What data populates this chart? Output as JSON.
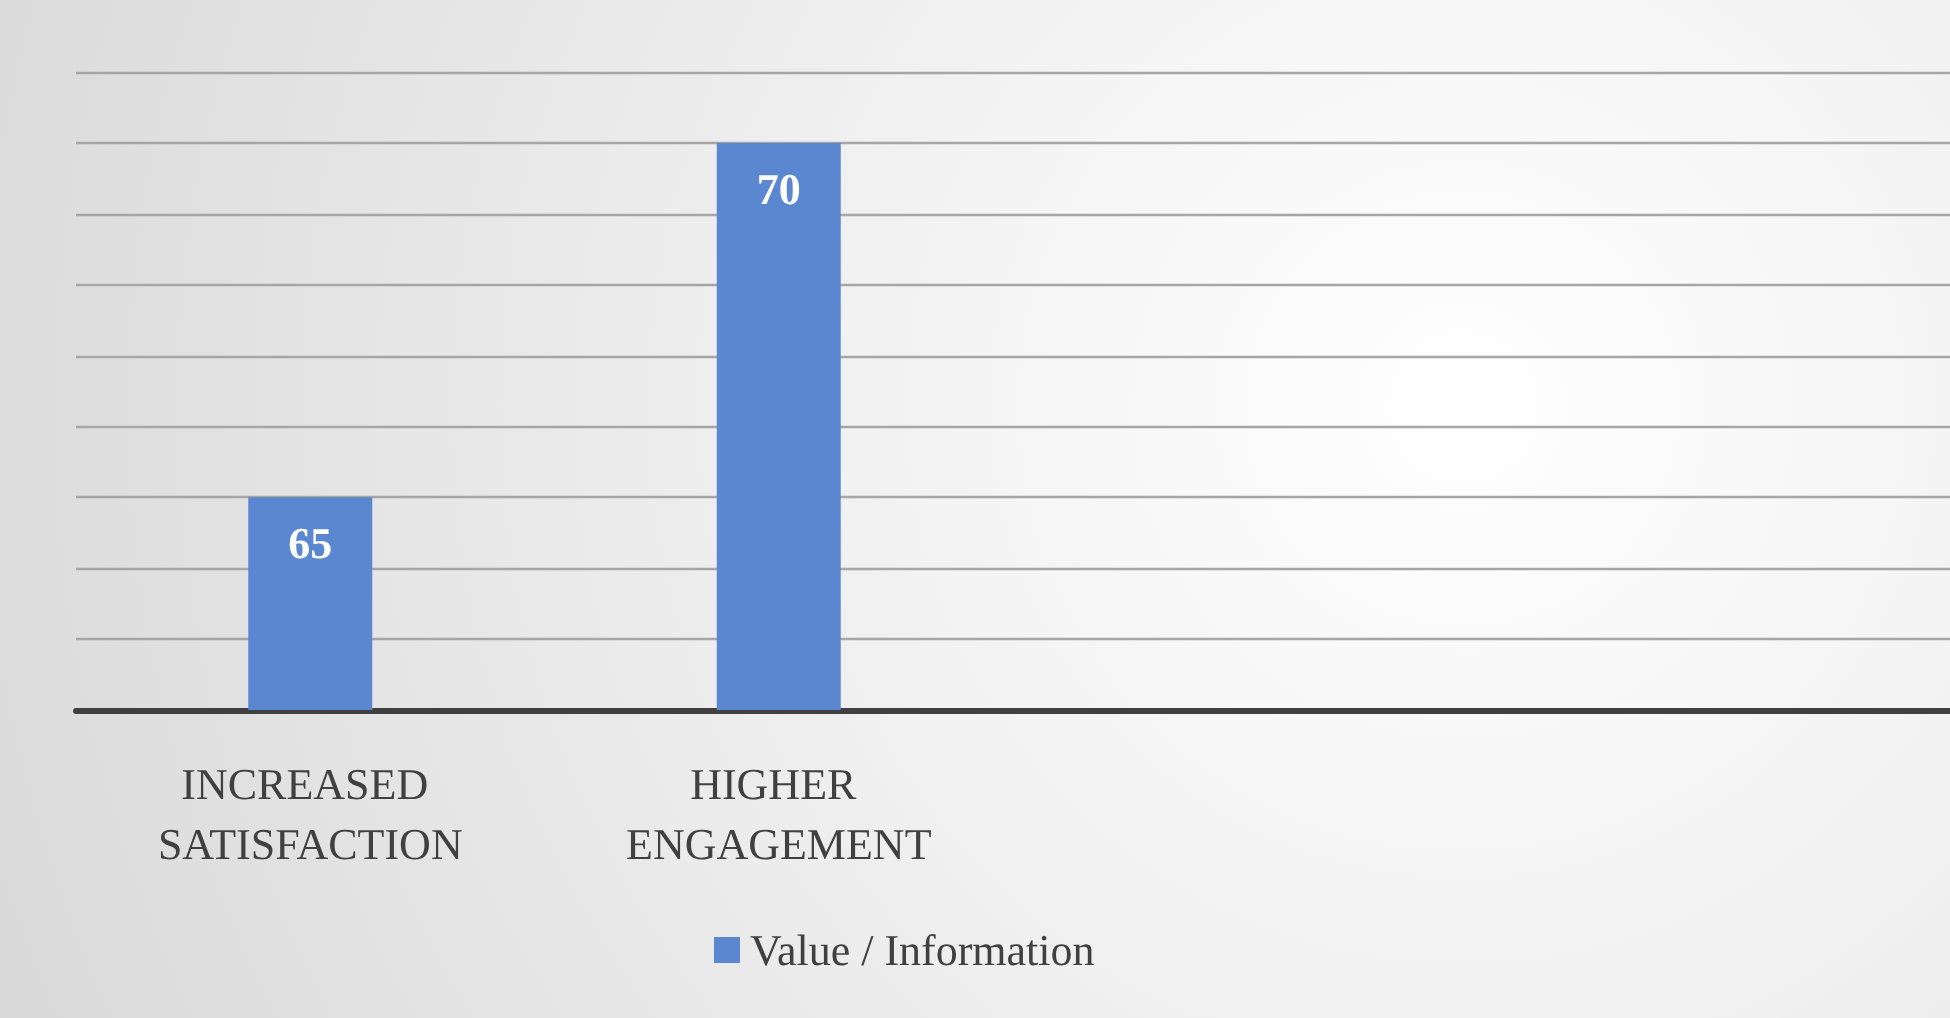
{
  "chart_data": {
    "type": "bar",
    "categories": [
      "INCREASED SATISFACTION",
      "HIGHER ENGAGEMENT",
      null,
      null
    ],
    "series": [
      {
        "name": "Value / Information",
        "color": "#5b87d0",
        "values": [
          65,
          70,
          null,
          null
        ]
      }
    ],
    "ylim": [
      62,
      71
    ],
    "yticks": [
      {
        "value": 62,
        "label": null
      },
      {
        "value": 63,
        "label": null
      },
      {
        "value": 64,
        "label": null
      },
      {
        "value": 65,
        "label": null
      },
      {
        "value": 66,
        "label": null
      },
      {
        "value": 67,
        "label": null
      },
      {
        "value": 68,
        "label": null
      },
      {
        "value": 69,
        "label": null
      },
      {
        "value": 70,
        "label": null
      },
      {
        "value": 71,
        "label": null
      }
    ],
    "grid": true,
    "legend": "bottom",
    "tick_labels": "x",
    "data_labels": true
  }
}
